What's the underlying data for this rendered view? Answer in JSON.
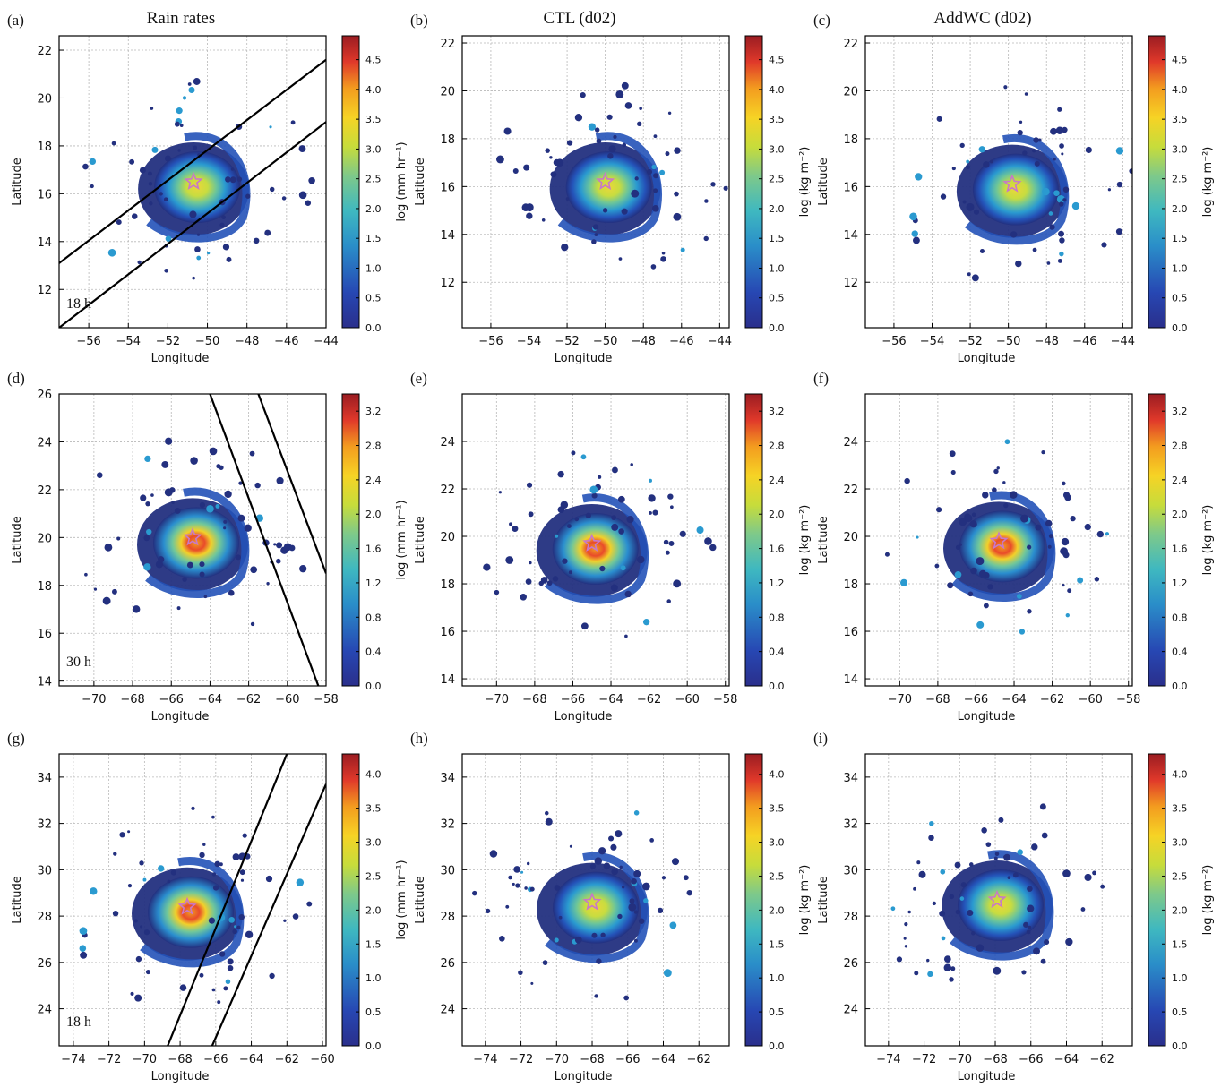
{
  "figure": {
    "column_titles": [
      "Rain rates",
      "CTL (d02)",
      "AddWC (d02)"
    ],
    "panel_letters": [
      "(a)",
      "(b)",
      "(c)",
      "(d)",
      "(e)",
      "(f)",
      "(g)",
      "(h)",
      "(i)"
    ],
    "time_labels": [
      "18 h",
      "30 h",
      "18 h"
    ]
  },
  "chart_data": [
    {
      "panel": "(a)",
      "type": "heatmap",
      "column": "Rain rates",
      "time_label": "18 h",
      "xlabel": "Longitude",
      "ylabel": "Latitude",
      "xlim": [
        -57.5,
        -44
      ],
      "ylim": [
        10.4,
        22.6
      ],
      "xticks": [
        -56,
        -54,
        -52,
        -50,
        -48,
        -46,
        -44
      ],
      "yticks": [
        12,
        14,
        16,
        18,
        20,
        22
      ],
      "colorbar_label": "log (mm hr⁻¹)",
      "colorbar_range": [
        0,
        4.9
      ],
      "colorbar_ticks": [
        0.0,
        0.5,
        1.0,
        1.5,
        2.0,
        2.5,
        3.0,
        3.5,
        4.0,
        4.5
      ],
      "star": [
        -50.7,
        16.5
      ],
      "swath_lines": [
        [
          [
            -57.5,
            13.1
          ],
          [
            -44,
            21.6
          ]
        ],
        [
          [
            -57.5,
            10.4
          ],
          [
            -44,
            19.0
          ]
        ]
      ],
      "grid": true
    },
    {
      "panel": "(b)",
      "type": "heatmap",
      "column": "CTL (d02)",
      "xlabel": "Longitude",
      "ylabel": "Latitude",
      "xlim": [
        -57.5,
        -43.5
      ],
      "ylim": [
        10.1,
        22.3
      ],
      "xticks": [
        -56,
        -54,
        -52,
        -50,
        -48,
        -46,
        -44
      ],
      "yticks": [
        12,
        14,
        16,
        18,
        20,
        22
      ],
      "colorbar_label": "log (kg m⁻²)",
      "colorbar_range": [
        0,
        4.9
      ],
      "colorbar_ticks": [
        0.0,
        0.5,
        1.0,
        1.5,
        2.0,
        2.5,
        3.0,
        3.5,
        4.0,
        4.5
      ],
      "star": [
        -50,
        16.2
      ],
      "grid": true
    },
    {
      "panel": "(c)",
      "type": "heatmap",
      "column": "AddWC (d02)",
      "xlabel": "Longitude",
      "ylabel": "Latitude",
      "xlim": [
        -57.5,
        -43.5
      ],
      "ylim": [
        10.1,
        22.3
      ],
      "xticks": [
        -56,
        -54,
        -52,
        -50,
        -48,
        -46,
        -44
      ],
      "yticks": [
        12,
        14,
        16,
        18,
        20,
        22
      ],
      "colorbar_label": "log (kg m⁻²)",
      "colorbar_range": [
        0,
        4.9
      ],
      "colorbar_ticks": [
        0.0,
        0.5,
        1.0,
        1.5,
        2.0,
        2.5,
        3.0,
        3.5,
        4.0,
        4.5
      ],
      "star": [
        -49.8,
        16.1
      ],
      "grid": true
    },
    {
      "panel": "(d)",
      "type": "heatmap",
      "column": "Rain rates",
      "time_label": "30 h",
      "xlabel": "Longitude",
      "ylabel": "Latitude",
      "xlim": [
        -71.8,
        -58
      ],
      "ylim": [
        13.8,
        26
      ],
      "xticks": [
        -70,
        -68,
        -66,
        -64,
        -62,
        -60,
        -58
      ],
      "yticks": [
        14,
        16,
        18,
        20,
        22,
        24,
        26
      ],
      "colorbar_label": "log (mm hr⁻¹)",
      "colorbar_range": [
        0,
        3.4
      ],
      "colorbar_ticks": [
        0.0,
        0.4,
        0.8,
        1.2,
        1.6,
        2.0,
        2.4,
        2.8,
        3.2
      ],
      "star": [
        -64.9,
        20
      ],
      "swath_lines": [
        [
          [
            -64.0,
            26
          ],
          [
            -58.4,
            13.8
          ]
        ],
        [
          [
            -61.5,
            26
          ],
          [
            -58,
            18.5
          ]
        ]
      ],
      "grid": true
    },
    {
      "panel": "(e)",
      "type": "heatmap",
      "column": "CTL (d02)",
      "xlabel": "Longitude",
      "ylabel": "Latitude",
      "xlim": [
        -71.8,
        -57.8
      ],
      "ylim": [
        13.7,
        26
      ],
      "xticks": [
        -70,
        -68,
        -66,
        -64,
        -62,
        -60,
        -58
      ],
      "yticks": [
        14,
        16,
        18,
        20,
        22,
        24
      ],
      "colorbar_label": "log (kg m⁻²)",
      "colorbar_range": [
        0,
        3.4
      ],
      "colorbar_ticks": [
        0.0,
        0.4,
        0.8,
        1.2,
        1.6,
        2.0,
        2.4,
        2.8,
        3.2
      ],
      "star": [
        -65,
        19.7
      ],
      "grid": true
    },
    {
      "panel": "(f)",
      "type": "heatmap",
      "column": "AddWC (d02)",
      "xlabel": "Longitude",
      "ylabel": "Latitude",
      "xlim": [
        -71.8,
        -57.8
      ],
      "ylim": [
        13.7,
        26
      ],
      "xticks": [
        -70,
        -68,
        -66,
        -64,
        -62,
        -60,
        -58
      ],
      "yticks": [
        14,
        16,
        18,
        20,
        22,
        24
      ],
      "colorbar_label": "log (kg m⁻²)",
      "colorbar_range": [
        0,
        3.4
      ],
      "colorbar_ticks": [
        0.0,
        0.4,
        0.8,
        1.2,
        1.6,
        2.0,
        2.4,
        2.8,
        3.2
      ],
      "star": [
        -64.8,
        19.8
      ],
      "grid": true
    },
    {
      "panel": "(g)",
      "type": "heatmap",
      "column": "Rain rates",
      "time_label": "18 h",
      "xlabel": "Longitude",
      "ylabel": "Latitude",
      "xlim": [
        -74.8,
        -59.8
      ],
      "ylim": [
        22.4,
        35
      ],
      "xticks": [
        -74,
        -72,
        -70,
        -68,
        -66,
        -64,
        -62,
        -60
      ],
      "yticks": [
        24,
        26,
        28,
        30,
        32,
        34
      ],
      "colorbar_label": "log (mm hr⁻¹)",
      "colorbar_range": [
        0,
        4.3
      ],
      "colorbar_ticks": [
        0.0,
        0.5,
        1.0,
        1.5,
        2.0,
        2.5,
        3.0,
        3.5,
        4.0
      ],
      "star": [
        -67.6,
        28.4
      ],
      "swath_lines": [
        [
          [
            -68.7,
            22.4
          ],
          [
            -62.0,
            35
          ]
        ],
        [
          [
            -66.2,
            22.4
          ],
          [
            -59.8,
            33.7
          ]
        ]
      ],
      "grid": true
    },
    {
      "panel": "(h)",
      "type": "heatmap",
      "column": "CTL (d02)",
      "xlabel": "Longitude",
      "ylabel": "Latitude",
      "xlim": [
        -75.3,
        -60.3
      ],
      "ylim": [
        22.4,
        35
      ],
      "xticks": [
        -74,
        -72,
        -70,
        -68,
        -66,
        -64,
        -62
      ],
      "yticks": [
        24,
        26,
        28,
        30,
        32,
        34
      ],
      "colorbar_label": "log (kg m⁻²)",
      "colorbar_range": [
        0,
        4.3
      ],
      "colorbar_ticks": [
        0.0,
        0.5,
        1.0,
        1.5,
        2.0,
        2.5,
        3.0,
        3.5,
        4.0
      ],
      "star": [
        -68,
        28.6
      ],
      "grid": true
    },
    {
      "panel": "(i)",
      "type": "heatmap",
      "column": "AddWC (d02)",
      "xlabel": "Longitude",
      "ylabel": "Latitude",
      "xlim": [
        -75.3,
        -60.3
      ],
      "ylim": [
        22.4,
        35
      ],
      "xticks": [
        -74,
        -72,
        -70,
        -68,
        -66,
        -64,
        -62
      ],
      "yticks": [
        24,
        26,
        28,
        30,
        32,
        34
      ],
      "colorbar_label": "log (kg m⁻²)",
      "colorbar_range": [
        0,
        4.3
      ],
      "colorbar_ticks": [
        0.0,
        0.5,
        1.0,
        1.5,
        2.0,
        2.5,
        3.0,
        3.5,
        4.0
      ],
      "star": [
        -67.9,
        28.7
      ],
      "grid": true
    }
  ]
}
